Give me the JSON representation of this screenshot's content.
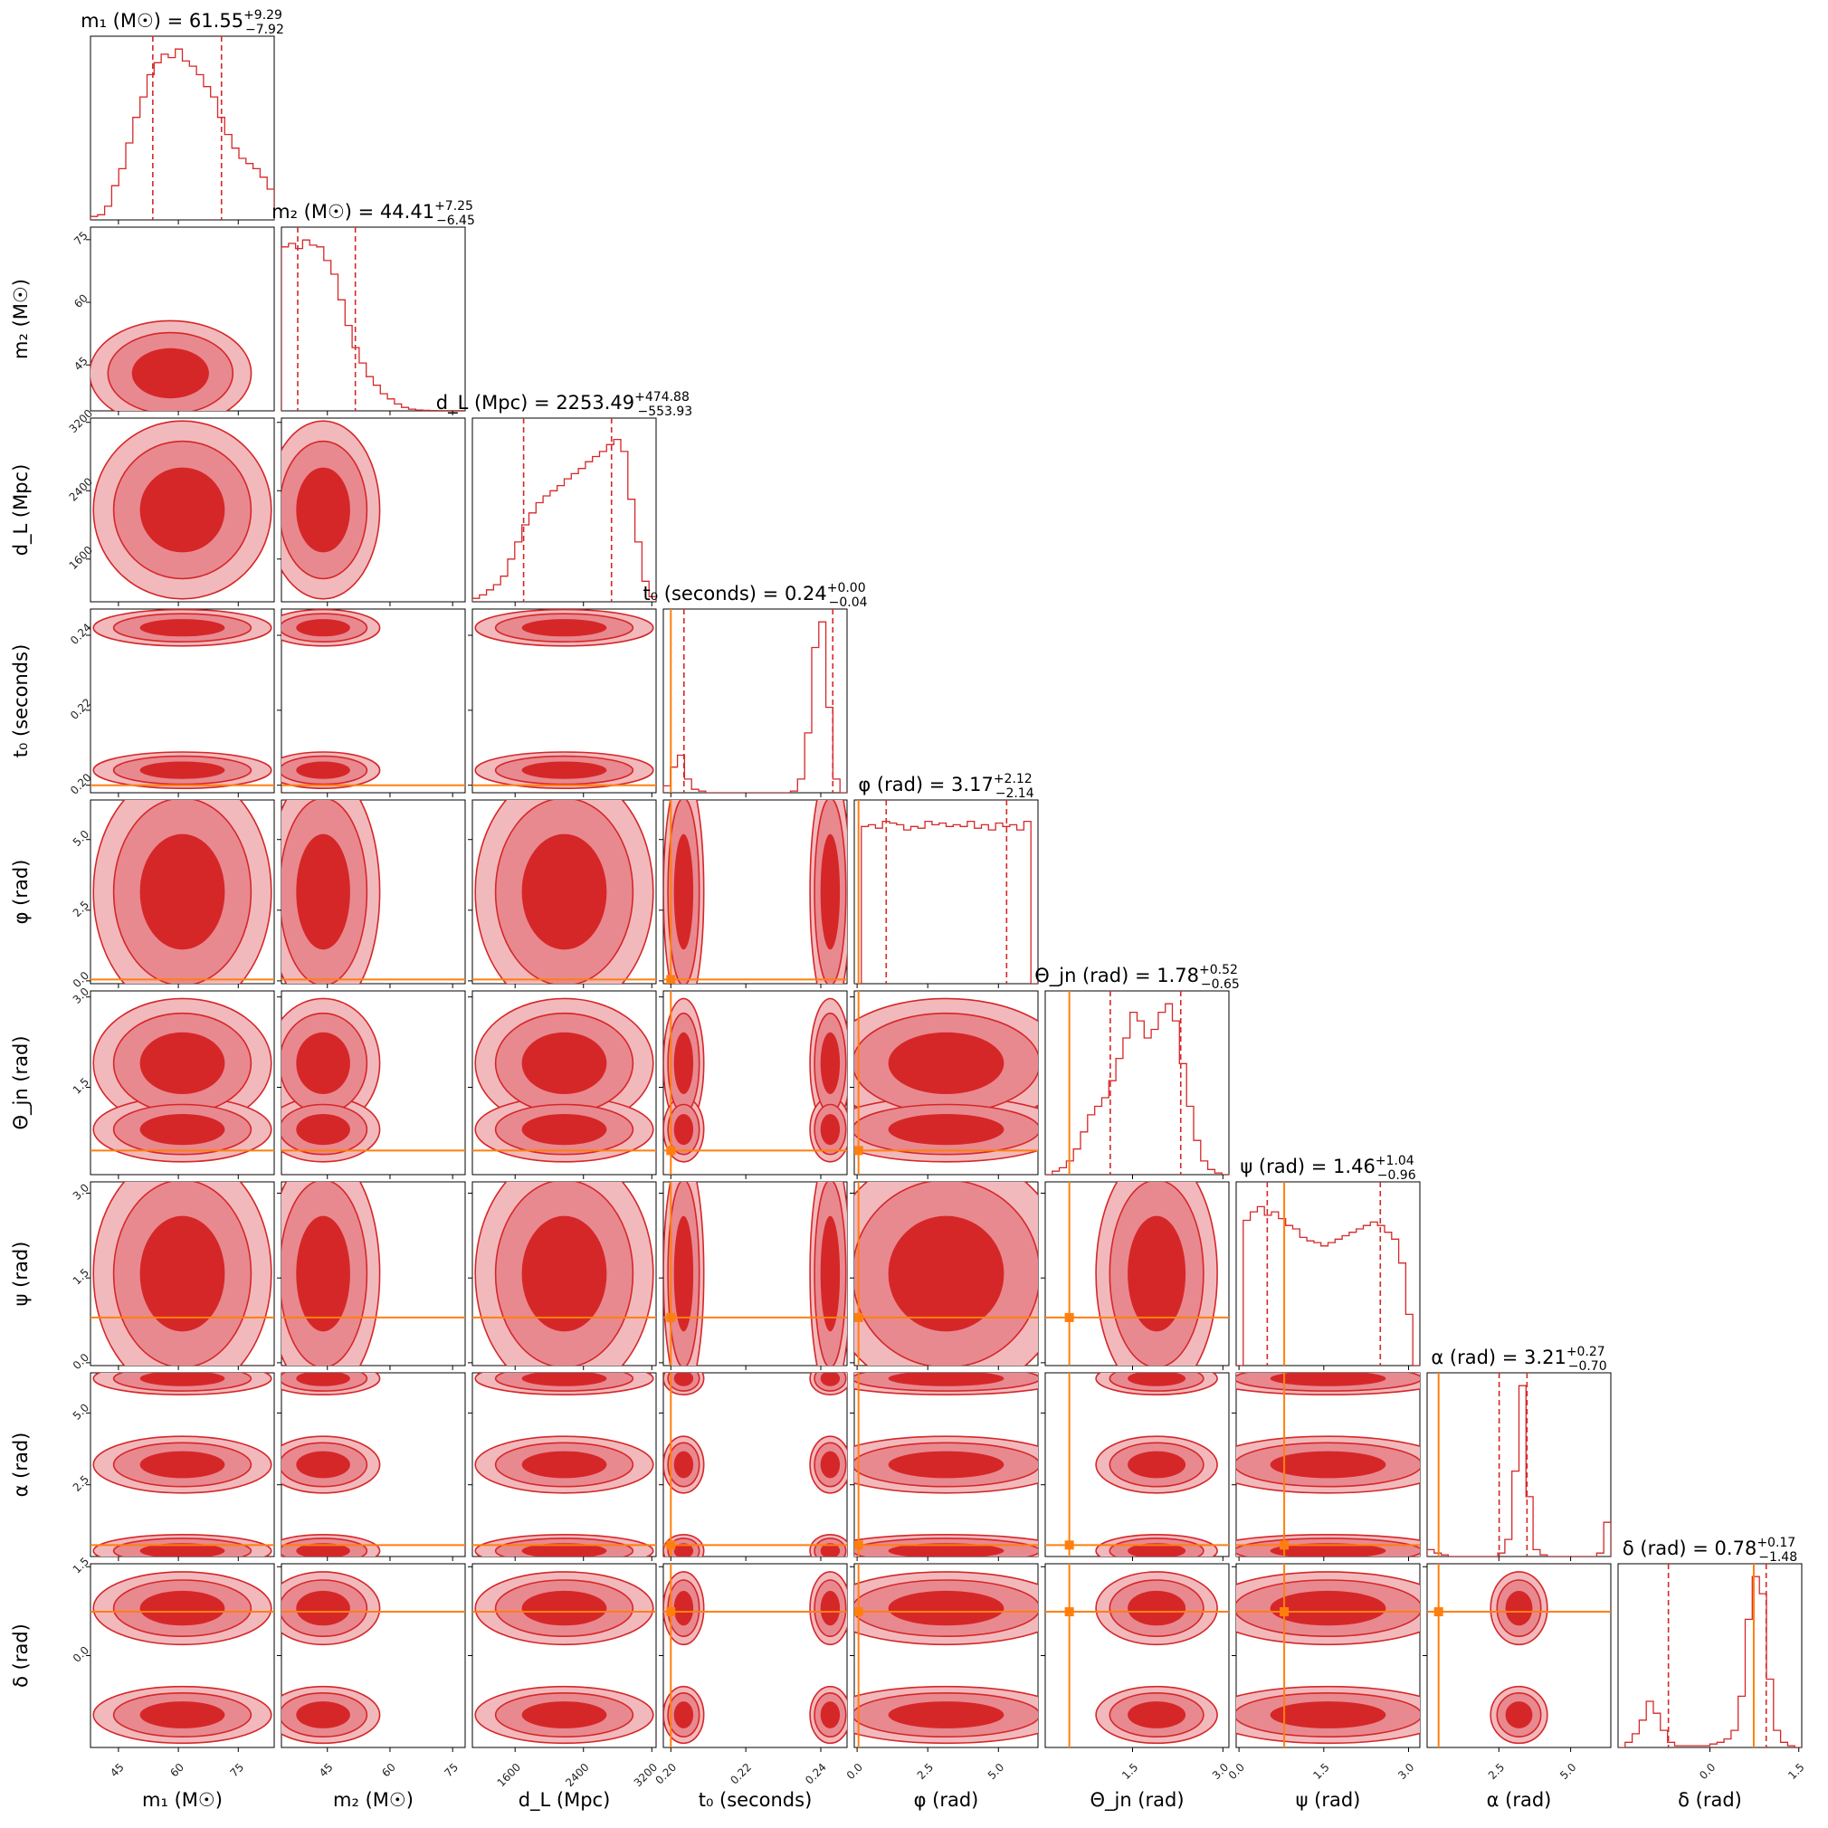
{
  "chart_data": {
    "type": "corner",
    "parameters": [
      {
        "key": "m1",
        "label": "m₁ (M☉)",
        "title_name": "m₁ (M☉) = ",
        "median": "61.55",
        "plus": "+9.29",
        "minus": "−7.92",
        "range": [
          38,
          84
        ],
        "ticks": [
          45,
          60,
          75
        ],
        "tick_labels": [
          "45",
          "60",
          "75"
        ],
        "q_low": 53.6,
        "q_high": 70.8,
        "injection": null
      },
      {
        "key": "m2",
        "label": "m₂ (M☉)",
        "title_name": "m₂ (M☉) = ",
        "median": "44.41",
        "plus": "+7.25",
        "minus": "−6.45",
        "range": [
          34,
          78
        ],
        "ticks": [
          45,
          60,
          75
        ],
        "tick_labels": [
          "45",
          "60",
          "75"
        ],
        "q_low": 37.9,
        "q_high": 51.7,
        "injection": null
      },
      {
        "key": "dL",
        "label": "d_L (Mpc)",
        "title_name": "d_L (Mpc) = ",
        "median": "2253.49",
        "plus": "+474.88",
        "minus": "−553.93",
        "range": [
          1100,
          3250
        ],
        "ticks": [
          1600,
          2400,
          3200
        ],
        "tick_labels": [
          "1600",
          "2400",
          "3200"
        ],
        "q_low": 1699.6,
        "q_high": 2728.4,
        "injection": null
      },
      {
        "key": "t0",
        "label": "t₀ (seconds)",
        "title_name": "t₀ (seconds) = ",
        "median": "0.24",
        "plus": "+0.00",
        "minus": "−0.04",
        "range": [
          0.198,
          0.247
        ],
        "ticks": [
          0.2,
          0.22,
          0.24
        ],
        "tick_labels": [
          "0.20",
          "0.22",
          "0.24"
        ],
        "q_low": 0.2035,
        "q_high": 0.2432,
        "injection": 0.2
      },
      {
        "key": "phi",
        "label": "φ (rad)",
        "title_name": "φ (rad) = ",
        "median": "3.17",
        "plus": "+2.12",
        "minus": "−2.14",
        "range": [
          -0.1,
          6.4
        ],
        "ticks": [
          0,
          2.5,
          5
        ],
        "tick_labels": [
          "0.0",
          "2.5",
          "5.0"
        ],
        "q_low": 1.03,
        "q_high": 5.29,
        "injection": 0.05
      },
      {
        "key": "thetajn",
        "label": "Θ_jn (rad)",
        "title_name": "Θ_jn (rad) = ",
        "median": "1.78",
        "plus": "+0.52",
        "minus": "−0.65",
        "range": [
          0.05,
          3.1
        ],
        "ticks": [
          1.5,
          3.0
        ],
        "tick_labels": [
          "1.5",
          "3.0"
        ],
        "q_low": 1.13,
        "q_high": 2.3,
        "injection": 0.45
      },
      {
        "key": "psi",
        "label": "ψ (rad)",
        "title_name": "ψ (rad) = ",
        "median": "1.46",
        "plus": "+1.04",
        "minus": "−0.96",
        "range": [
          -0.05,
          3.2
        ],
        "ticks": [
          0,
          1.5,
          3.0
        ],
        "tick_labels": [
          "0.0",
          "1.5",
          "3.0"
        ],
        "q_low": 0.5,
        "q_high": 2.5,
        "injection": 0.8
      },
      {
        "key": "alpha",
        "label": "α (rad)",
        "title_name": "α (rad) = ",
        "median": "3.21",
        "plus": "+0.27",
        "minus": "−0.70",
        "range": [
          0,
          6.4
        ],
        "ticks": [
          2.5,
          5
        ],
        "tick_labels": [
          "2.5",
          "5.0"
        ],
        "q_low": 2.51,
        "q_high": 3.48,
        "injection": 0.4
      },
      {
        "key": "delta",
        "label": "δ (rad)",
        "title_name": "δ (rad) = ",
        "median": "0.78",
        "plus": "+0.17",
        "minus": "−1.48",
        "range": [
          -1.55,
          1.55
        ],
        "ticks": [
          0,
          1.5
        ],
        "tick_labels": [
          "0.0",
          "1.5"
        ],
        "q_low": -0.7,
        "q_high": 0.95,
        "injection": 0.74
      }
    ],
    "histograms": [
      [
        0.02,
        0.03,
        0.08,
        0.2,
        0.3,
        0.45,
        0.6,
        0.72,
        0.85,
        0.92,
        0.97,
        0.95,
        1.0,
        0.93,
        0.9,
        0.85,
        0.78,
        0.72,
        0.6,
        0.5,
        0.42,
        0.36,
        0.33,
        0.3,
        0.25,
        0.18
      ],
      [
        0.96,
        0.98,
        0.95,
        1.0,
        0.97,
        0.96,
        0.88,
        0.8,
        0.65,
        0.5,
        0.37,
        0.28,
        0.2,
        0.15,
        0.1,
        0.07,
        0.04,
        0.02,
        0.01,
        0.005,
        0.003,
        0.002,
        0.001,
        0.001,
        0.001,
        0.001
      ],
      [
        0.02,
        0.04,
        0.07,
        0.1,
        0.15,
        0.25,
        0.35,
        0.45,
        0.52,
        0.58,
        0.62,
        0.65,
        0.68,
        0.72,
        0.75,
        0.78,
        0.82,
        0.85,
        0.88,
        0.92,
        0.95,
        0.88,
        0.6,
        0.35,
        0.12,
        0.03
      ],
      [
        0.04,
        0.15,
        0.22,
        0.08,
        0.02,
        0.01,
        0.0,
        0.0,
        0.0,
        0.0,
        0.0,
        0.0,
        0.0,
        0.0,
        0.0,
        0.0,
        0.0,
        0.0,
        0.01,
        0.08,
        0.35,
        0.85,
        1.0,
        0.5,
        0.08,
        0.0
      ],
      [
        0.0,
        0.92,
        0.93,
        0.91,
        0.95,
        0.94,
        0.93,
        0.9,
        0.92,
        0.91,
        0.95,
        0.93,
        0.94,
        0.92,
        0.93,
        0.92,
        0.95,
        0.91,
        0.93,
        0.9,
        0.94,
        0.92,
        0.93,
        0.9,
        0.95,
        0.0
      ],
      [
        0.0,
        0.02,
        0.04,
        0.08,
        0.15,
        0.25,
        0.35,
        0.4,
        0.45,
        0.55,
        0.68,
        0.8,
        0.95,
        0.9,
        0.8,
        0.85,
        0.95,
        1.0,
        0.9,
        0.65,
        0.4,
        0.2,
        0.08,
        0.03,
        0.01,
        0.0
      ],
      [
        0.0,
        0.85,
        0.9,
        0.93,
        0.88,
        0.9,
        0.86,
        0.82,
        0.8,
        0.75,
        0.73,
        0.72,
        0.7,
        0.72,
        0.74,
        0.76,
        0.78,
        0.8,
        0.82,
        0.84,
        0.82,
        0.78,
        0.74,
        0.6,
        0.3,
        0.0
      ],
      [
        0.04,
        0.02,
        0.01,
        0.0,
        0.0,
        0.0,
        0.0,
        0.0,
        0.0,
        0.0,
        0.02,
        0.1,
        0.5,
        1.0,
        0.35,
        0.04,
        0.01,
        0.0,
        0.0,
        0.0,
        0.0,
        0.0,
        0.0,
        0.0,
        0.02,
        0.2
      ],
      [
        0.0,
        0.03,
        0.08,
        0.16,
        0.27,
        0.2,
        0.1,
        0.03,
        0.01,
        0.01,
        0.01,
        0.01,
        0.01,
        0.02,
        0.03,
        0.05,
        0.1,
        0.3,
        0.75,
        1.0,
        0.9,
        0.4,
        0.1,
        0.03,
        0.01,
        0.0
      ]
    ]
  }
}
